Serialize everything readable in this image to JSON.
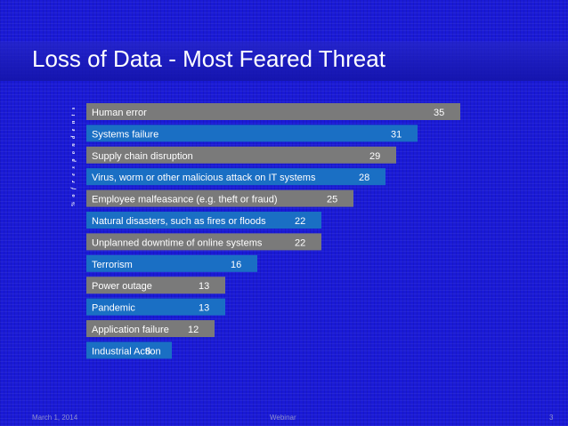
{
  "slide": {
    "title": "Loss of Data - Most Feared Threat",
    "footer_date": "March 1, 2014",
    "footer_center": "Webinar",
    "footer_page": "3"
  },
  "colors": {
    "background": "#1a1ad6",
    "bar_gray": "#7a7a7a",
    "bar_blue": "#1a6fc4",
    "text": "#ffffff"
  },
  "chart_data": {
    "type": "bar",
    "orientation": "horizontal",
    "ylabel": "% o f r e s p o n d e n t s",
    "categories": [
      "Human error",
      "Systems failure",
      "Supply chain disruption",
      "Virus, worm or other malicious attack on IT systems",
      "Employee malfeasance (e.g. theft or fraud)",
      "Natural disasters, such as fires or floods",
      "Unplanned downtime of online systems",
      "Terrorism",
      "Power outage",
      "Pandemic",
      "Application failure",
      "Industrial Action"
    ],
    "values": [
      35,
      31,
      29,
      28,
      25,
      22,
      22,
      16,
      13,
      13,
      12,
      8
    ],
    "bar_colors": [
      "gray",
      "blue",
      "gray",
      "blue",
      "gray",
      "blue",
      "gray",
      "blue",
      "gray",
      "blue",
      "gray",
      "blue"
    ],
    "xlim": [
      0,
      35
    ],
    "grid": false,
    "legend": "none"
  }
}
